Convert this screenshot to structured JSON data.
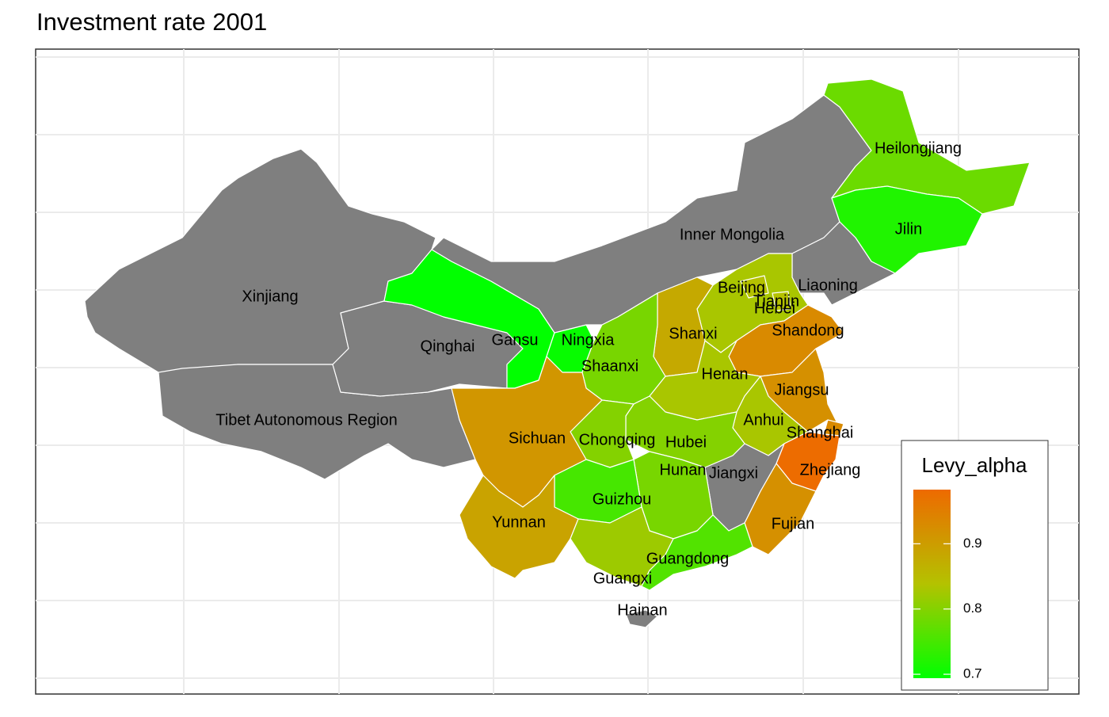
{
  "chart_data": {
    "type": "choropleth",
    "title": "Investment rate 2001",
    "regions": [
      "Xinjiang",
      "Tibet Autonomous Region",
      "Qinghai",
      "Gansu",
      "Ningxia",
      "Inner Mongolia",
      "Heilongjiang",
      "Jilin",
      "Liaoning",
      "Hebei",
      "Beijing",
      "Tianjin",
      "Shanxi",
      "Shaanxi",
      "Shandong",
      "Henan",
      "Jiangsu",
      "Anhui",
      "Shanghai",
      "Zhejiang",
      "Fujian",
      "Jiangxi",
      "Hubei",
      "Chongqing",
      "Sichuan",
      "Hunan",
      "Guizhou",
      "Yunnan",
      "Guangxi",
      "Guangdong",
      "Hainan"
    ],
    "values": [
      null,
      null,
      null,
      0.695,
      0.7,
      null,
      0.78,
      0.72,
      null,
      0.83,
      0.84,
      0.84,
      0.88,
      0.79,
      0.93,
      0.83,
      0.92,
      0.83,
      0.93,
      0.98,
      0.92,
      null,
      0.8,
      0.8,
      0.91,
      0.79,
      0.75,
      0.89,
      0.82,
      0.76,
      null
    ],
    "na_color": "#7f7f7f",
    "colorbar": {
      "title": "Levy_alpha",
      "lim": [
        0.694,
        0.983
      ],
      "ticks": [
        0.7,
        0.8,
        0.9
      ],
      "colors": [
        "#00ff00",
        "#b4c200",
        "#ee6a00"
      ]
    },
    "grid": true
  }
}
